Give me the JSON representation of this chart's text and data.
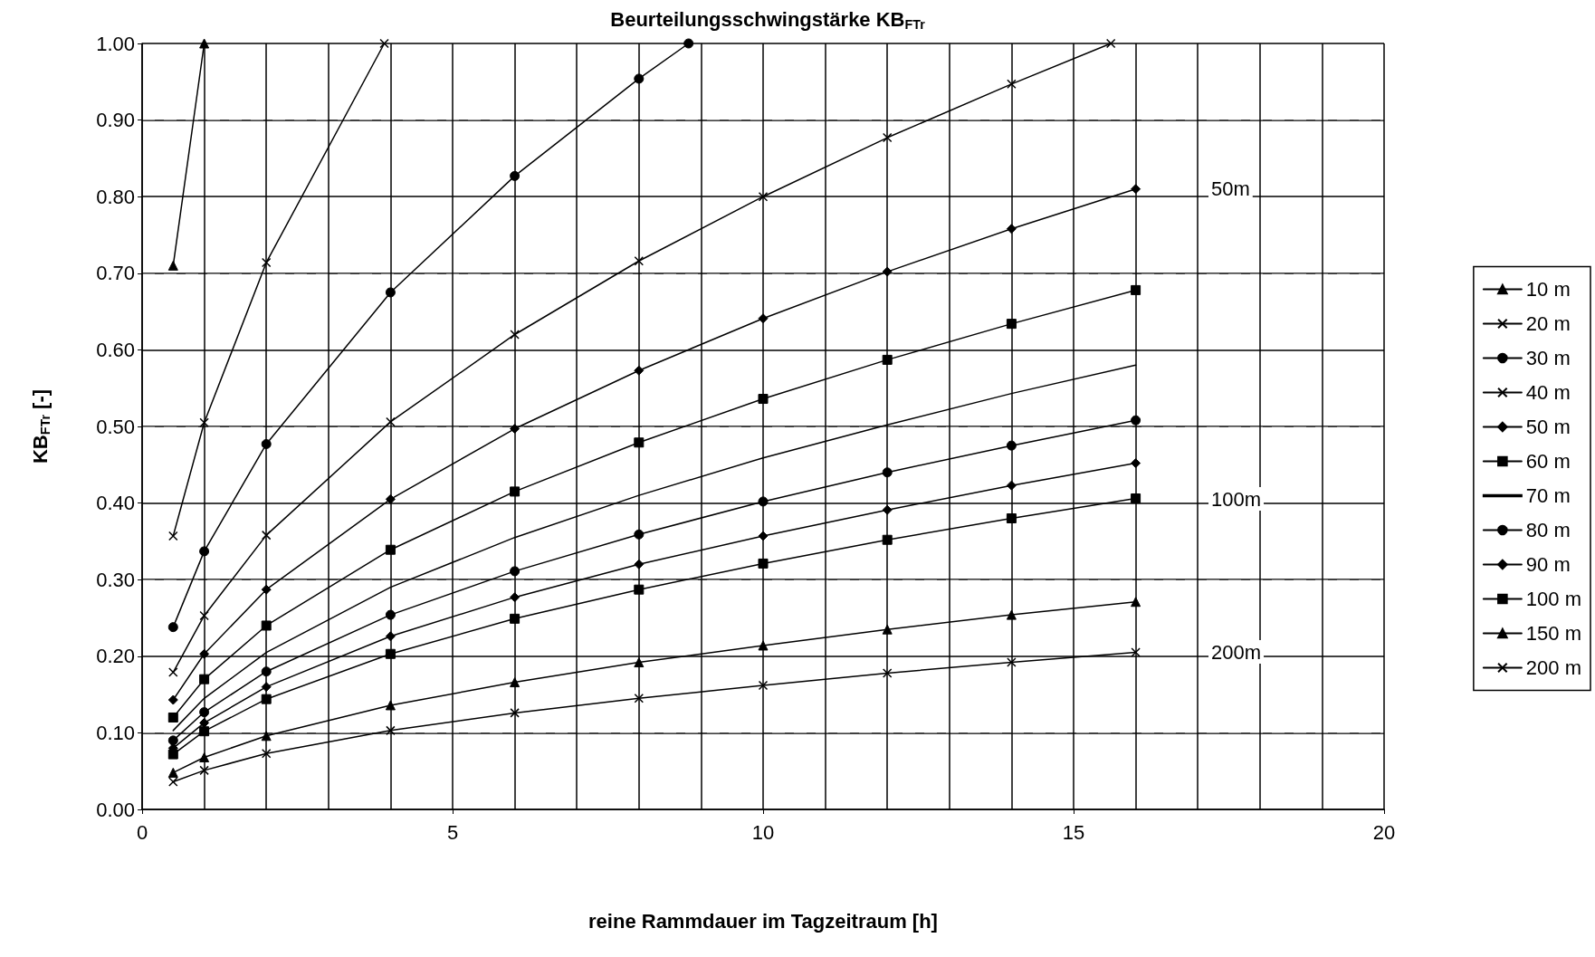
{
  "chart_data": {
    "type": "line",
    "title": "Beurteilungsschwingstärke KB$_{FTr}$",
    "xlabel": "reine Rammdauer im Tagzeitraum [h]",
    "ylabel": "KB$_{FTr}$ [-]",
    "x": [
      0.5,
      1,
      2,
      4,
      6,
      8,
      10,
      12,
      14,
      16
    ],
    "xlim": [
      0,
      20
    ],
    "xticks": [
      0,
      5,
      10,
      15,
      20
    ],
    "ylim": [
      0,
      1
    ],
    "yticks": [
      {
        "value": 0,
        "label": "0.00"
      },
      {
        "value": 0.1,
        "label": "0.10"
      },
      {
        "value": 0.2,
        "label": "0.20"
      },
      {
        "value": 0.3,
        "label": "0.30"
      },
      {
        "value": 0.4,
        "label": "0.40"
      },
      {
        "value": 0.5,
        "label": "0.50"
      },
      {
        "value": 0.6,
        "label": "0.60"
      },
      {
        "value": 0.7,
        "label": "0.70"
      },
      {
        "value": 0.8,
        "label": "0.80"
      },
      {
        "value": 0.9,
        "label": "0.90"
      },
      {
        "value": 1,
        "label": "1.00"
      }
    ],
    "grid": true,
    "legend": "right",
    "series": [
      {
        "name": "10 m",
        "color": "#000000",
        "marker": "triangle",
        "x": [
          0.5,
          1
        ],
        "values": [
          0.71,
          1.0
        ]
      },
      {
        "name": "20 m",
        "color": "#000000",
        "marker": "cross",
        "x": [
          0.5,
          1,
          2,
          3.9
        ],
        "values": [
          0.357,
          0.505,
          0.714,
          1.0
        ]
      },
      {
        "name": "30 m",
        "color": "#000000",
        "marker": "circle",
        "x": [
          0.5,
          1,
          2,
          4,
          6,
          8,
          8.8
        ],
        "values": [
          0.238,
          0.337,
          0.477,
          0.675,
          0.827,
          0.954,
          1.0
        ]
      },
      {
        "name": "40 m",
        "color": "#000000",
        "marker": "cross",
        "x": [
          0.5,
          1,
          2,
          4,
          6,
          8,
          10,
          12,
          14,
          15.6
        ],
        "values": [
          0.179,
          0.253,
          0.358,
          0.506,
          0.62,
          0.716,
          0.8,
          0.877,
          0.947,
          1.0
        ]
      },
      {
        "name": "50 m",
        "color": "#000000",
        "marker": "diamond",
        "values": [
          0.143,
          0.203,
          0.287,
          0.405,
          0.497,
          0.573,
          0.641,
          0.702,
          0.758,
          0.81
        ]
      },
      {
        "name": "60 m",
        "color": "#000000",
        "marker": "square",
        "values": [
          0.12,
          0.17,
          0.24,
          0.339,
          0.415,
          0.479,
          0.536,
          0.587,
          0.634,
          0.678
        ]
      },
      {
        "name": "70 m",
        "color": "#000000",
        "marker": "none",
        "values": [
          0.103,
          0.145,
          0.205,
          0.29,
          0.355,
          0.41,
          0.459,
          0.502,
          0.543,
          0.58
        ]
      },
      {
        "name": "80 m",
        "color": "#000000",
        "marker": "circle",
        "values": [
          0.09,
          0.127,
          0.18,
          0.254,
          0.311,
          0.359,
          0.402,
          0.44,
          0.475,
          0.508
        ]
      },
      {
        "name": "90 m",
        "color": "#000000",
        "marker": "diamond",
        "values": [
          0.08,
          0.113,
          0.16,
          0.226,
          0.277,
          0.32,
          0.357,
          0.391,
          0.423,
          0.452
        ]
      },
      {
        "name": "100 m",
        "color": "#000000",
        "marker": "square",
        "values": [
          0.072,
          0.102,
          0.144,
          0.203,
          0.249,
          0.287,
          0.321,
          0.352,
          0.38,
          0.406
        ]
      },
      {
        "name": "150 m",
        "color": "#000000",
        "marker": "triangle",
        "values": [
          0.048,
          0.068,
          0.096,
          0.136,
          0.166,
          0.192,
          0.214,
          0.235,
          0.254,
          0.271
        ]
      },
      {
        "name": "200 m",
        "color": "#000000",
        "marker": "cross",
        "values": [
          0.036,
          0.051,
          0.073,
          0.103,
          0.126,
          0.145,
          0.162,
          0.178,
          0.192,
          0.205
        ]
      }
    ],
    "annotations": [
      "50m",
      "100m",
      "200m"
    ]
  }
}
